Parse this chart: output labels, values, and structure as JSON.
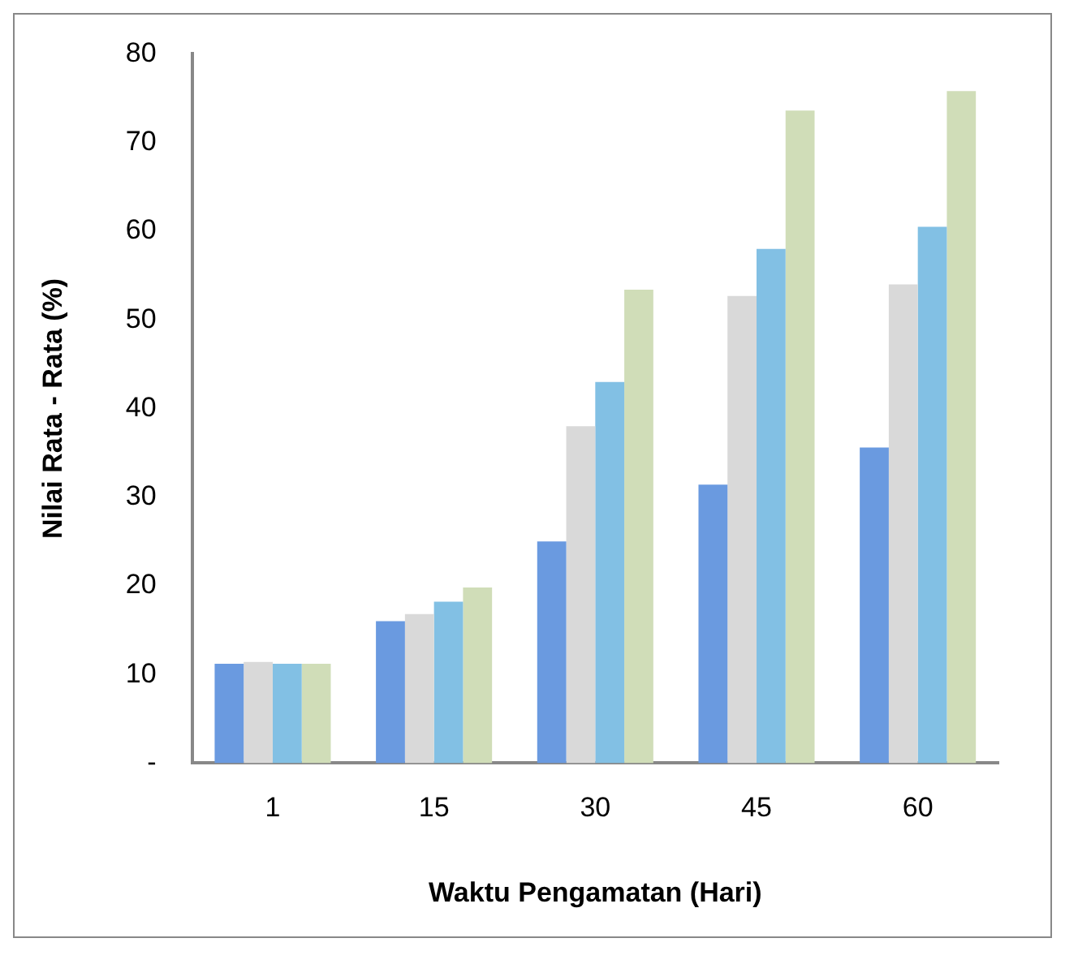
{
  "chart_data": {
    "type": "bar",
    "xlabel": "Waktu Pengamatan (Hari)",
    "ylabel": "Nilai Rata - Rata (%)",
    "categories": [
      "1",
      "15",
      "30",
      "45",
      "60"
    ],
    "series": [
      {
        "color": "#6a9ae0",
        "values": [
          11.2,
          16,
          25,
          31.4,
          35.6
        ]
      },
      {
        "color": "#d9d9d9",
        "values": [
          11.4,
          16.8,
          38,
          52.7,
          54
        ]
      },
      {
        "color": "#82c0e4",
        "values": [
          11.2,
          18.2,
          43,
          58,
          60.5
        ]
      },
      {
        "color": "#d0ddb8",
        "values": [
          11.2,
          19.8,
          53.4,
          73.6,
          75.8
        ]
      }
    ],
    "ylim": [
      0,
      80
    ],
    "yticks": [
      {
        "value": 0,
        "label": "-"
      },
      10,
      20,
      30,
      40,
      50,
      60,
      70,
      80
    ],
    "grid": false,
    "legend": false
  }
}
